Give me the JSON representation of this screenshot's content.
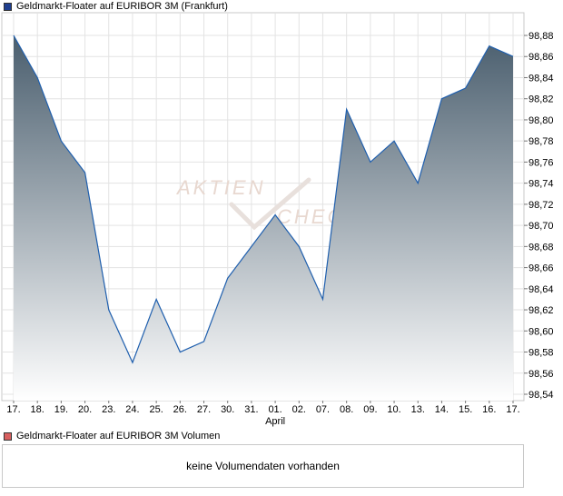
{
  "price_legend": {
    "label": "Geldmarkt-Floater auf EURIBOR 3M (Frankfurt)",
    "color": "#1f3f8f"
  },
  "volume_legend": {
    "label": "Geldmarkt-Floater auf EURIBOR 3M Volumen",
    "color": "#d86060"
  },
  "volume_message": "keine Volumendaten vorhanden",
  "watermark": {
    "line1": "AKTIEN",
    "line2": "CHECK"
  },
  "chart_data": {
    "type": "area",
    "categories": [
      "17.",
      "18.",
      "19.",
      "20.",
      "23.",
      "24.",
      "25.",
      "26.",
      "27.",
      "30.",
      "31.",
      "01.",
      "02.",
      "07.",
      "08.",
      "09.",
      "10.",
      "13.",
      "14.",
      "15.",
      "16.",
      "17."
    ],
    "month_labels": [
      {
        "index": 11,
        "label": "April"
      }
    ],
    "series": [
      {
        "name": "Geldmarkt-Floater auf EURIBOR 3M (Frankfurt)",
        "values": [
          98.88,
          98.84,
          98.78,
          98.75,
          98.62,
          98.57,
          98.63,
          98.58,
          98.59,
          98.65,
          98.68,
          98.71,
          98.68,
          98.63,
          98.81,
          98.76,
          98.78,
          98.74,
          98.82,
          98.83,
          98.87,
          98.86
        ]
      }
    ],
    "ylim": [
      98.54,
      98.89
    ],
    "yticks": [
      "98,54",
      "98,56",
      "98,58",
      "98,60",
      "98,62",
      "98,64",
      "98,66",
      "98,68",
      "98,70",
      "98,72",
      "98,74",
      "98,76",
      "98,78",
      "98,80",
      "98,82",
      "98,84",
      "98,86",
      "98,88"
    ],
    "ytick_values": [
      98.54,
      98.56,
      98.58,
      98.6,
      98.62,
      98.64,
      98.66,
      98.68,
      98.7,
      98.72,
      98.74,
      98.76,
      98.78,
      98.8,
      98.82,
      98.84,
      98.86,
      98.88
    ],
    "y_axis_position": "right",
    "grid": true,
    "colors": {
      "line": "#1f5fae",
      "fill_top": "#4a5e6e",
      "fill_bottom": "#ffffff",
      "grid": "#e0e0e0",
      "frame": "#c8c8c8"
    }
  }
}
